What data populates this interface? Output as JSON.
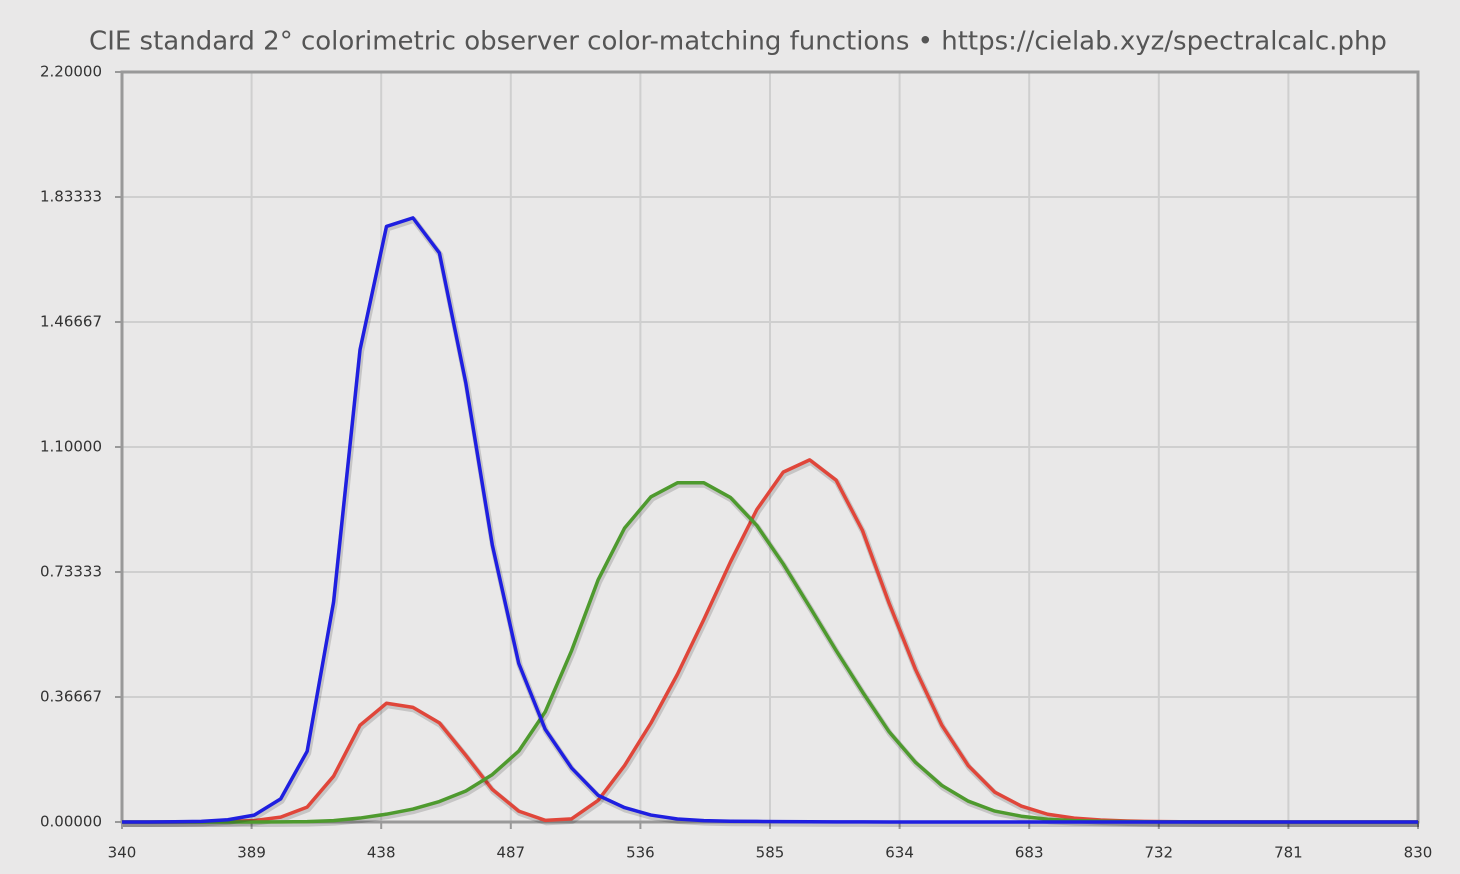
{
  "chart_data": {
    "type": "line",
    "title": "CIE standard 2° colorimetric observer color-matching functions  •  https://cielab.xyz/spectralcalc.php",
    "x": [
      340,
      350,
      360,
      370,
      380,
      390,
      400,
      410,
      420,
      430,
      440,
      450,
      460,
      470,
      480,
      490,
      500,
      510,
      520,
      530,
      540,
      550,
      560,
      570,
      580,
      590,
      600,
      610,
      620,
      630,
      640,
      650,
      660,
      670,
      680,
      690,
      700,
      710,
      720,
      730,
      740,
      750,
      760,
      770,
      780,
      790,
      800,
      810,
      820,
      830
    ],
    "series": [
      {
        "color": "#e0463a",
        "values": [
          0,
          0,
          0.0001,
          0.0004,
          0.0014,
          0.0042,
          0.0143,
          0.0435,
          0.1344,
          0.2839,
          0.3483,
          0.3362,
          0.2908,
          0.1954,
          0.0956,
          0.032,
          0.0049,
          0.0093,
          0.0633,
          0.1655,
          0.2904,
          0.4334,
          0.5945,
          0.7621,
          0.9163,
          1.0263,
          1.0622,
          1.0026,
          0.8544,
          0.6424,
          0.4479,
          0.2835,
          0.1649,
          0.0874,
          0.0468,
          0.0227,
          0.0114,
          0.0058,
          0.0029,
          0.0014,
          0.0007,
          0.0003,
          0.0002,
          0.0001,
          0,
          0,
          0,
          0,
          0,
          0
        ]
      },
      {
        "color": "#4e9a2e",
        "values": [
          0,
          0,
          0,
          0,
          0,
          0.0001,
          0.0004,
          0.0012,
          0.004,
          0.0116,
          0.023,
          0.038,
          0.06,
          0.091,
          0.139,
          0.208,
          0.323,
          0.503,
          0.71,
          0.862,
          0.954,
          0.995,
          0.995,
          0.952,
          0.87,
          0.757,
          0.631,
          0.503,
          0.381,
          0.265,
          0.175,
          0.107,
          0.061,
          0.032,
          0.017,
          0.0082,
          0.0041,
          0.0021,
          0.001,
          0.0005,
          0.0002,
          0.0001,
          0.0001,
          0,
          0,
          0,
          0,
          0,
          0,
          0
        ]
      },
      {
        "color": "#1f1fe0",
        "values": [
          0,
          0,
          0.0006,
          0.0019,
          0.0065,
          0.0201,
          0.0679,
          0.2074,
          0.6456,
          1.3856,
          1.7471,
          1.7721,
          1.6692,
          1.2876,
          0.813,
          0.4652,
          0.272,
          0.1582,
          0.0783,
          0.0422,
          0.0203,
          0.0088,
          0.0039,
          0.0021,
          0.0017,
          0.0011,
          0.0008,
          0.0003,
          0.0002,
          0.0001,
          0,
          0,
          0,
          0,
          0,
          0,
          0,
          0,
          0,
          0,
          0,
          0,
          0,
          0,
          0,
          0,
          0,
          0,
          0,
          0
        ]
      }
    ],
    "xlim": [
      340,
      830
    ],
    "xticks": [
      340,
      389,
      438,
      487,
      536,
      585,
      634,
      683,
      732,
      781,
      830
    ],
    "ylim": [
      0,
      2.2
    ],
    "yticks": [
      {
        "value": 0,
        "label": "0.00000"
      },
      {
        "value": 0.36667,
        "label": "0.36667"
      },
      {
        "value": 0.73333,
        "label": "0.73333"
      },
      {
        "value": 1.1,
        "label": "1.10000"
      },
      {
        "value": 1.46667,
        "label": "1.46667"
      },
      {
        "value": 1.83333,
        "label": "1.83333"
      },
      {
        "value": 2.2,
        "label": "2.20000"
      }
    ],
    "grid": true
  }
}
